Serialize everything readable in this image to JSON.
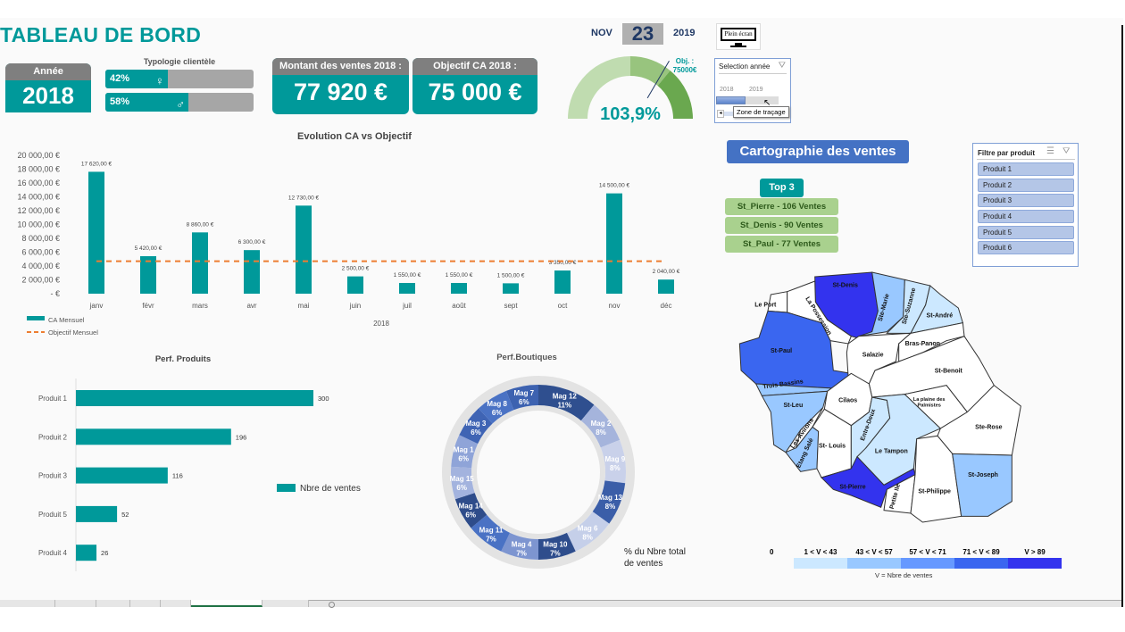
{
  "header": {
    "title": "TABLEAU DE BORD"
  },
  "year_card": {
    "label": "Année",
    "value": "2018"
  },
  "typology": {
    "title": "Typologie clientèle",
    "female_pct": "42%",
    "male_pct": "58%",
    "female_fraction": 0.42,
    "male_fraction": 0.58,
    "female_icon": "female-icon",
    "male_icon": "male-icon"
  },
  "sales_card": {
    "label": "Montant des ventes 2018 :",
    "value": "77 920 €"
  },
  "objective_card": {
    "label": "Objectif CA 2018 :",
    "value": "75 000 €"
  },
  "date": {
    "month": "NOV",
    "day": "23",
    "year": "2019"
  },
  "fullscreen": {
    "label": "Plein écran",
    "icon": "monitor-icon"
  },
  "gauge": {
    "value": "103,9%",
    "objective_label": "Obj. :",
    "objective_value": "75000€",
    "fraction": 1.039
  },
  "year_slicer": {
    "title": "Selection année",
    "years": [
      "2018",
      "2019"
    ],
    "selected": "2018",
    "tooltip": "Zone de traçage"
  },
  "map_button": {
    "label": "Cartographie des ventes"
  },
  "top3": {
    "title": "Top 3",
    "items": [
      "St_Pierre - 106 Ventes",
      "St_Denis - 90 Ventes",
      "St_Paul - 77 Ventes"
    ]
  },
  "product_filter": {
    "title": "Filtre par produit",
    "items": [
      "Produit 1",
      "Produit 2",
      "Produit 3",
      "Produit 4",
      "Produit 5",
      "Produit 6"
    ]
  },
  "colors": {
    "teal": "#00999a",
    "orange": "#ed7d31",
    "gray_header": "#7f7f7f",
    "blue_button": "#4472c4",
    "green_top": "#a9d18e"
  },
  "chart_data": [
    {
      "type": "bar",
      "title": "Evolution CA vs Objectif",
      "xlabel": "2018",
      "ylabel": "",
      "categories": [
        "janv",
        "févr",
        "mars",
        "avr",
        "mai",
        "juin",
        "juil",
        "août",
        "sept",
        "oct",
        "nov",
        "déc"
      ],
      "series": [
        {
          "name": "CA Mensuel",
          "type": "bar",
          "values": [
            17620,
            5420,
            8860,
            6300,
            12730,
            2500,
            1550,
            1550,
            1500,
            3350,
            14500,
            2040
          ],
          "labels": [
            "17 620,00 €",
            "5 420,00 €",
            "8 860,00 €",
            "6 300,00 €",
            "12 730,00 €",
            "2 500,00 €",
            "1 550,00 €",
            "1 550,00 €",
            "1 500,00 €",
            "3 350,00 €",
            "14 500,00 €",
            "2 040,00 €"
          ]
        },
        {
          "name": "Objectif Mensuel",
          "type": "line",
          "dashed": true,
          "values": [
            4700,
            4700,
            4700,
            4700,
            4700,
            4700,
            4700,
            4700,
            4700,
            4700,
            4700,
            4700
          ]
        }
      ],
      "ylim": [
        0,
        20000
      ],
      "yticks": [
        "20 000,00 €",
        "18 000,00 €",
        "16 000,00 €",
        "14 000,00 €",
        "12 000,00 €",
        "10 000,00 €",
        "8 000,00 €",
        "6 000,00 €",
        "4 000,00 €",
        "2 000,00 €",
        "-   €"
      ],
      "legend": "bottom-left",
      "grid": false
    },
    {
      "type": "bar",
      "orientation": "horizontal",
      "title": "Perf. Produits",
      "categories": [
        "Produit 1",
        "Produit 2",
        "Produit 3",
        "Produit 5",
        "Produit 4"
      ],
      "series": [
        {
          "name": "Nbre de ventes",
          "values": [
            300,
            196,
            116,
            52,
            26
          ]
        }
      ],
      "legend": "right",
      "grid": false
    },
    {
      "type": "pie",
      "donut": true,
      "title": "Perf.Boutiques",
      "annotation": "% du Nbre total de ventes",
      "categories": [
        "Mag 12",
        "Mag 2",
        "Mag 9",
        "Mag 13",
        "Mag 6",
        "Mag 10",
        "Mag 4",
        "Mag 11",
        "Mag 14",
        "Mag 15",
        "Mag 1",
        "Mag 3",
        "Mag 8",
        "Mag 7"
      ],
      "values": [
        11,
        8,
        8,
        8,
        8,
        7,
        7,
        7,
        6,
        6,
        6,
        6,
        6,
        6
      ],
      "labels": [
        "11%",
        "8%",
        "8%",
        "8%",
        "8%",
        "7%",
        "7%",
        "7%",
        "6%",
        "6%",
        "6%",
        "6%",
        "6%",
        "6%"
      ],
      "colors": [
        "#2f4f8f",
        "#a5b4dc",
        "#c9d1ea",
        "#3b5ea8",
        "#c5cfe9",
        "#2e4d8c",
        "#7d95d0",
        "#4a72c4",
        "#2e4c8a",
        "#a3b3de",
        "#8fa4d8",
        "#3f64b4",
        "#4a72c4",
        "#3d62b0"
      ]
    }
  ],
  "map": {
    "communes": [
      {
        "name": "St-Denis",
        "class": 5
      },
      {
        "name": "Le Port",
        "class": 0
      },
      {
        "name": "La Possession",
        "class": 0
      },
      {
        "name": "St-Paul",
        "class": 4
      },
      {
        "name": "Ste-Marie",
        "class": 2
      },
      {
        "name": "Ste-Suzanne",
        "class": 1
      },
      {
        "name": "St-André",
        "class": 1
      },
      {
        "name": "Salazie",
        "class": 0
      },
      {
        "name": "Bras-Panon",
        "class": 0
      },
      {
        "name": "St-Benoit",
        "class": 0
      },
      {
        "name": "Trois Bassins",
        "class": 2
      },
      {
        "name": "St-Leu",
        "class": 2
      },
      {
        "name": "Cilaos",
        "class": 0
      },
      {
        "name": "Les Avirons",
        "class": 0
      },
      {
        "name": "Etang Salé",
        "class": 2
      },
      {
        "name": "St- Louis",
        "class": 0
      },
      {
        "name": "Entre-Deux",
        "class": 1
      },
      {
        "name": "Le Tampon",
        "class": 1
      },
      {
        "name": "La plaine des Palmistes",
        "class": 0
      },
      {
        "name": "Ste-Rose",
        "class": 0
      },
      {
        "name": "St-Pierre",
        "class": 5
      },
      {
        "name": "Petite Ile",
        "class": 0
      },
      {
        "name": "St-Philippe",
        "class": 0
      },
      {
        "name": "St-Joseph",
        "class": 2
      }
    ],
    "legend": {
      "zero": "0",
      "classes": [
        "1 < V < 43",
        "43 < V < 57",
        "57 < V < 71",
        "71 < V < 89",
        "V > 89"
      ],
      "colors": [
        "#ffffff",
        "#cce8ff",
        "#99c8ff",
        "#6699ff",
        "#3a66f0",
        "#3333ee"
      ],
      "caption": "V = Nbre de ventes"
    }
  }
}
